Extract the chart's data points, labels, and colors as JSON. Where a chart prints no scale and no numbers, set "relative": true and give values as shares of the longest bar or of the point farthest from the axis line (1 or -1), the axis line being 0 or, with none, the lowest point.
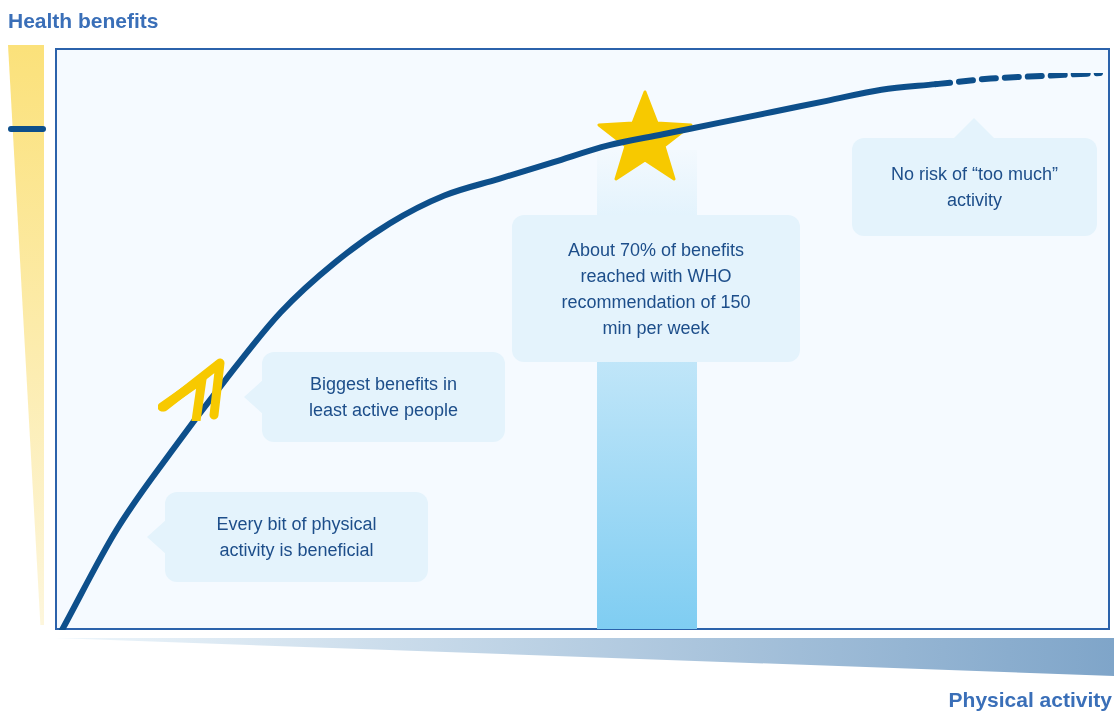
{
  "chart_data": {
    "type": "line",
    "relative": true,
    "xlabel": "Physical activity",
    "ylabel": "Health benefits",
    "categories": [
      null,
      null,
      null,
      null,
      null,
      null,
      null,
      null,
      null,
      null,
      null,
      null,
      null,
      null,
      null,
      null,
      null,
      null,
      null,
      null
    ],
    "series": [
      {
        "color": "#0d4f8b",
        "line_style": "solid",
        "values": [
          0,
          0.18,
          0.32,
          0.45,
          0.57,
          0.66,
          0.73,
          0.78,
          0.81,
          0.84,
          0.87,
          0.89,
          0.91,
          0.93,
          0.95,
          0.97,
          0.98,
          null,
          null,
          null
        ]
      },
      {
        "color": "#0d4f8b",
        "line_style": "dashed",
        "values": [
          null,
          null,
          null,
          null,
          null,
          null,
          null,
          null,
          null,
          null,
          null,
          null,
          null,
          null,
          null,
          null,
          0.98,
          0.99,
          0.995,
          1
        ]
      }
    ],
    "marker": "none",
    "legend": false,
    "annotations": [
      "Every bit of physical activity is beneficial",
      "Biggest benefits in least active people",
      "About 70% of benefits reached with WHO recommendation of 150 min per week",
      "No risk of “too much” activity"
    ]
  }
}
